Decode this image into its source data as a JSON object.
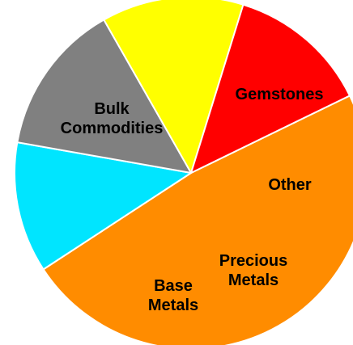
{
  "chart_data": {
    "type": "pie",
    "title": "",
    "slices": [
      {
        "label": "Bulk Commodities",
        "label_lines": [
          "Bulk",
          "Commodities"
        ],
        "value": 48,
        "color": "#ff8c00"
      },
      {
        "label": "Gemstones",
        "label_lines": [
          "Gemstones"
        ],
        "value": 12,
        "color": "#00e5ff"
      },
      {
        "label": "Other",
        "label_lines": [
          "Other"
        ],
        "value": 14,
        "color": "#808080"
      },
      {
        "label": "Precious Metals",
        "label_lines": [
          "Precious",
          "Metals"
        ],
        "value": 13,
        "color": "#ffff00"
      },
      {
        "label": "Base Metals",
        "label_lines": [
          "Base",
          "Metals"
        ],
        "value": 13,
        "color": "#ff0000"
      }
    ]
  }
}
